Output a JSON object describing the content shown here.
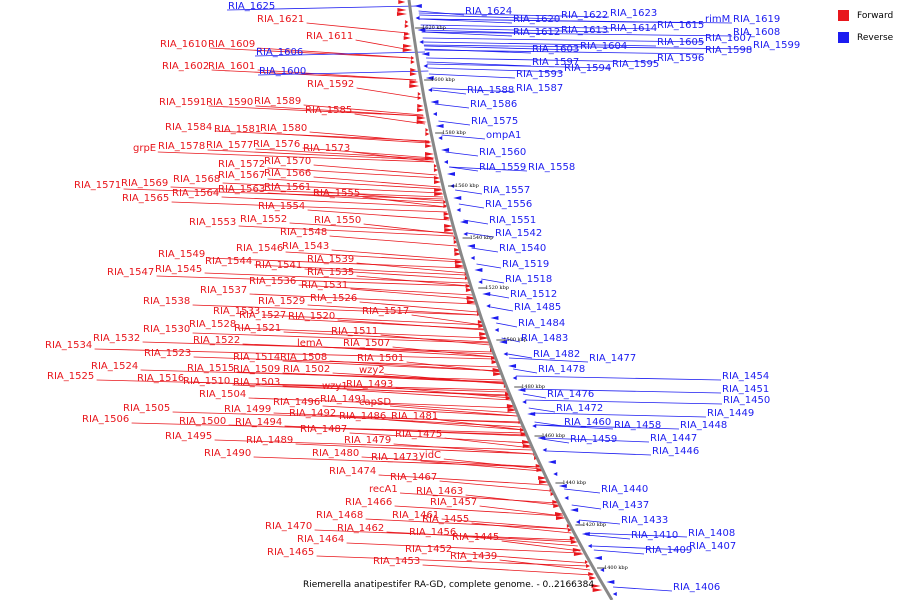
{
  "legend": {
    "forward": {
      "label": "Forward",
      "color": "#e8161c"
    },
    "reverse": {
      "label": "Reverse",
      "color": "#1c1cf0"
    }
  },
  "caption": "Riemerella anatipestifer RA-GD, complete genome. - 0..2166384",
  "ticks": [
    "1620 kbp",
    "1600 kbp",
    "1580 kbp",
    "1560 kbp",
    "1540 kbp",
    "1520 kbp",
    "1500 kbp",
    "1480 kbp",
    "1460 kbp",
    "1440 kbp",
    "1420 kbp",
    "1400 kbp"
  ],
  "forward_labels": [
    "RIA_1621",
    "RIA_1611",
    "RIA_1610",
    "RIA_1609",
    "RIA_1602",
    "RIA_1601",
    "RIA_1592",
    "RIA_1591",
    "RIA_1590",
    "RIA_1589",
    "RIA_1585",
    "RIA_1584",
    "RIA_1581",
    "RIA_1580",
    "grpE",
    "RIA_1578",
    "RIA_1577",
    "RIA_1576",
    "RIA_1573",
    "RIA_1572",
    "RIA_1570",
    "RIA_1568",
    "RIA_1567",
    "RIA_1566",
    "RIA_1571",
    "RIA_1569",
    "RIA_1565",
    "RIA_1564",
    "RIA_1563",
    "RIA_1561",
    "RIA_1555",
    "RIA_1554",
    "RIA_1553",
    "RIA_1552",
    "RIA_1550",
    "RIA_1548",
    "RIA_1546",
    "RIA_1543",
    "RIA_1549",
    "RIA_1544",
    "RIA_1541",
    "RIA_1539",
    "RIA_1547",
    "RIA_1545",
    "RIA_1535",
    "RIA_1536",
    "RIA_1531",
    "RIA_1537",
    "RIA_1538",
    "RIA_1529",
    "RIA_1526",
    "RIA_1533",
    "RIA_1527",
    "RIA_1520",
    "RIA_1517",
    "RIA_1528",
    "RIA_1521",
    "RIA_1530",
    "RIA_1532",
    "RIA_1522",
    "RIA_1511",
    "RIA_1534",
    "lemA",
    "RIA_1507",
    "RIA_1523",
    "RIA_1514",
    "RIA_1508",
    "RIA_1501",
    "RIA_1524",
    "RIA_1515",
    "RIA_1509",
    "RIA_1502",
    "wzy2",
    "RIA_1525",
    "RIA_1516",
    "RIA_1510",
    "RIA_1503",
    "wzy1",
    "RIA_1493",
    "RIA_1504",
    "RIA_1491",
    "capSD",
    "RIA_1505",
    "RIA_1499",
    "RIA_1496",
    "RIA_1492",
    "RIA_1506",
    "RIA_1500",
    "RIA_1494",
    "RIA_1487",
    "RIA_1486",
    "RIA_1481",
    "RIA_1495",
    "RIA_1489",
    "RIA_1479",
    "RIA_1475",
    "RIA_1490",
    "RIA_1480",
    "RIA_1473",
    "yidC",
    "RIA_1474",
    "RIA_1467",
    "recA1",
    "RIA_1463",
    "RIA_1466",
    "RIA_1457",
    "RIA_1468",
    "RIA_1461",
    "RIA_1455",
    "RIA_1470",
    "RIA_1462",
    "RIA_1456",
    "RIA_1464",
    "RIA_1445",
    "RIA_1465",
    "RIA_1452",
    "RIA_1453",
    "RIA_1439"
  ],
  "reverse_labels": [
    "RIA_1625",
    "RIA_1624",
    "RIA_1620",
    "RIA_1622",
    "RIA_1623",
    "RIA_1612",
    "RIA_1613",
    "RIA_1614",
    "RIA_1615",
    "rimM",
    "RIA_1619",
    "RIA_1606",
    "RIA_1605",
    "RIA_1607",
    "RIA_1608",
    "RIA_1603",
    "RIA_1604",
    "RIA_1600",
    "RIA_1597",
    "RIA_1594",
    "RIA_1595",
    "RIA_1596",
    "RIA_1598",
    "RIA_1599",
    "RIA_1593",
    "RIA_1588",
    "RIA_1587",
    "RIA_1586",
    "RIA_1575",
    "ompA1",
    "RIA_1560",
    "RIA_1559",
    "RIA_1558",
    "RIA_1557",
    "RIA_1556",
    "RIA_1551",
    "RIA_1542",
    "RIA_1540",
    "RIA_1519",
    "RIA_1518",
    "RIA_1512",
    "RIA_1485",
    "RIA_1484",
    "RIA_1483",
    "RIA_1482",
    "RIA_1477",
    "RIA_1478",
    "RIA_1476",
    "RIA_1472",
    "RIA_1460",
    "RIA_1459",
    "RIA_1458",
    "RIA_1454",
    "RIA_1451",
    "RIA_1450",
    "RIA_1449",
    "RIA_1448",
    "RIA_1447",
    "RIA_1446",
    "RIA_1440",
    "RIA_1437",
    "RIA_1433",
    "RIA_1410",
    "RIA_1408",
    "RIA_1409",
    "RIA_1407",
    "RIA_1406"
  ]
}
